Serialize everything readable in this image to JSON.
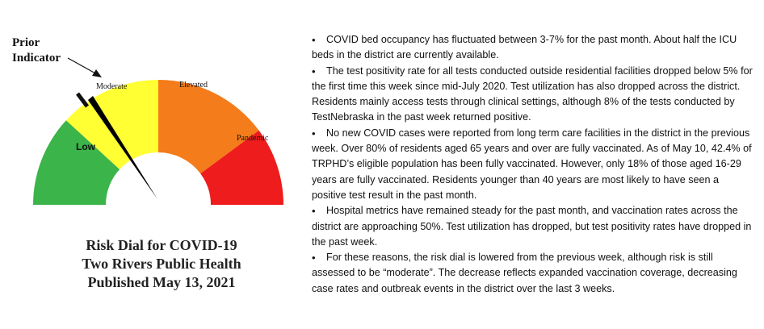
{
  "dial": {
    "prior_indicator_label": "Prior Indicator",
    "segments": [
      {
        "label": "Low",
        "color": "#3bb44a"
      },
      {
        "label": "Moderate",
        "color": "#ffff33"
      },
      {
        "label": "Elevated",
        "color": "#f47c1a"
      },
      {
        "label": "Pandemic",
        "color": "#ee1c1c"
      }
    ],
    "needle_color": "#000000",
    "caption_lines": [
      "Risk Dial for COVID-19",
      "Two Rivers Public Health",
      "Published May 13, 2021"
    ]
  },
  "bullets": [
    "COVID bed occupancy has fluctuated between 3-7% for the past month. About half the ICU beds in the district are currently available.",
    "The test positivity rate for all tests conducted outside residential facilities dropped below 5% for the first time this week since mid-July 2020. Test utilization has also dropped across the district. Residents mainly access tests through clinical settings, although 8% of the tests conducted by TestNebraska in the past week returned positive.",
    "No new COVID cases were reported from long term care facilities in the district in the previous week. Over 80% of residents aged 65 years and over are fully vaccinated. As of May 10, 42.4% of TRPHD’s eligible population has been fully vaccinated. However, only 18% of those aged 16-29 years are fully vaccinated. Residents younger than 40 years are most likely to have seen a positive test result in the past month.",
    "Hospital metrics have remained steady for the past month, and vaccination rates across the district are approaching 50%. Test utilization has dropped, but test positivity rates have dropped in the past week.",
    "For these reasons, the risk dial is lowered from the previous week, although risk is still assessed to be “moderate”. The decrease reflects expanded vaccination coverage, decreasing case rates and outbreak events in the district over the last 3 weeks."
  ]
}
